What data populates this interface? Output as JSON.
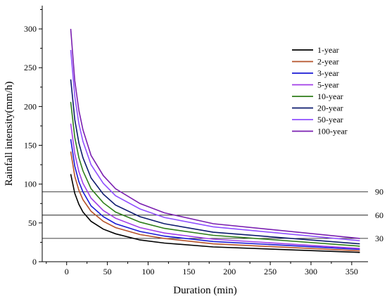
{
  "chart_data": {
    "type": "line",
    "xlabel": "Duration (min)",
    "ylabel": "Rainfall intensity(mm/h)",
    "xlim": [
      -30,
      370
    ],
    "ylim": [
      0,
      330
    ],
    "xticks": [
      0,
      50,
      100,
      150,
      200,
      250,
      300,
      350
    ],
    "yticks": [
      0,
      50,
      100,
      150,
      200,
      250,
      300
    ],
    "x": [
      5,
      10,
      15,
      20,
      30,
      45,
      60,
      90,
      120,
      180,
      360
    ],
    "series": [
      {
        "name": "1-year",
        "color": "#000000",
        "values": [
          113,
          88,
          74,
          64,
          52,
          42,
          36,
          28,
          24,
          19,
          12
        ]
      },
      {
        "name": "2-year",
        "color": "#b5532a",
        "values": [
          142,
          110,
          92,
          80,
          65,
          52,
          44,
          35,
          30,
          23,
          14
        ]
      },
      {
        "name": "3-year",
        "color": "#1a1ad6",
        "values": [
          158,
          123,
          103,
          90,
          72,
          58,
          49,
          39,
          33,
          26,
          16
        ]
      },
      {
        "name": "5-year",
        "color": "#a23ee8",
        "values": [
          178,
          139,
          116,
          101,
          82,
          66,
          56,
          44,
          37,
          29,
          17
        ]
      },
      {
        "name": "10-year",
        "color": "#2e7d1a",
        "values": [
          206,
          160,
          134,
          117,
          94,
          76,
          64,
          51,
          43,
          34,
          20
        ]
      },
      {
        "name": "20-year",
        "color": "#0d1b6e",
        "values": [
          235,
          183,
          153,
          134,
          108,
          87,
          73,
          58,
          49,
          38,
          23
        ]
      },
      {
        "name": "50-year",
        "color": "#8f4fff",
        "values": [
          273,
          213,
          178,
          155,
          125,
          101,
          85,
          68,
          57,
          45,
          27
        ]
      },
      {
        "name": "100-year",
        "color": "#7a1fb0",
        "values": [
          300,
          233,
          195,
          170,
          137,
          111,
          94,
          75,
          63,
          49,
          30
        ]
      }
    ],
    "reference_lines": [
      {
        "value": 90,
        "label": "90"
      },
      {
        "value": 60,
        "label": "60"
      },
      {
        "value": 30,
        "label": "30"
      }
    ],
    "legend_position": "top-right",
    "grid": false
  }
}
